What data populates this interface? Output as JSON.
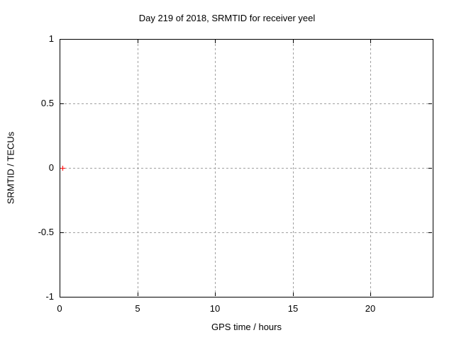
{
  "figure": {
    "background": "#ffffff"
  },
  "chart_data": {
    "type": "scatter",
    "title": "Day 219 of 2018, SRMTID for receiver yeel",
    "xlabel": "GPS time / hours",
    "ylabel": "SRMTID / TECUs",
    "xlim": [
      0,
      24
    ],
    "ylim": [
      -1,
      1
    ],
    "grid": true,
    "grid_style": "dashed",
    "legend": "none",
    "xticks": [
      {
        "value": 0,
        "label": "0"
      },
      {
        "value": 5,
        "label": "5"
      },
      {
        "value": 10,
        "label": "10"
      },
      {
        "value": 15,
        "label": "15"
      },
      {
        "value": 20,
        "label": "20"
      }
    ],
    "yticks": [
      {
        "value": -1,
        "label": "-1"
      },
      {
        "value": -0.5,
        "label": "-0.5"
      },
      {
        "value": 0,
        "label": "0"
      },
      {
        "value": 0.5,
        "label": "0.5"
      },
      {
        "value": 1,
        "label": "1"
      }
    ],
    "series": [
      {
        "name": "SRMTID",
        "marker": "plus",
        "color": "#ff0000",
        "points": [
          {
            "x": 0.2,
            "y": 0.0
          }
        ]
      }
    ],
    "colors": {
      "axis": "#000000",
      "grid": "#a0a0a0",
      "text": "#000000"
    }
  }
}
